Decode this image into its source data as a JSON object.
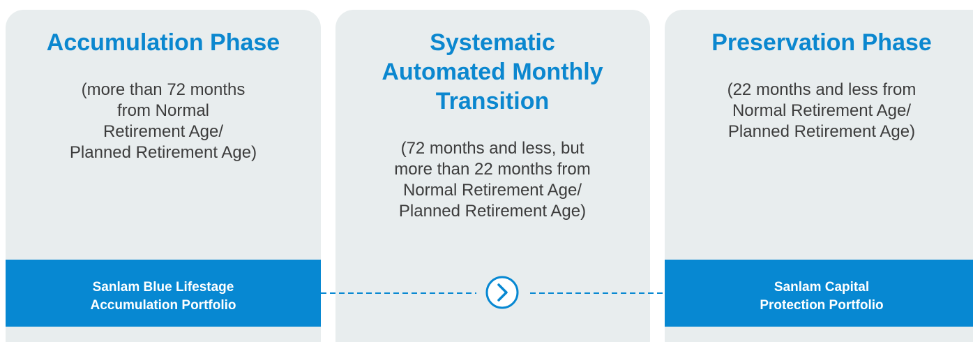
{
  "panels": [
    {
      "title_lines": [
        "Accumulation Phase"
      ],
      "description_lines": [
        "(more than 72 months",
        "from Normal",
        "Retirement Age/",
        "Planned Retirement Age)"
      ],
      "portfolio_lines": [
        "Sanlam Blue Lifestage",
        "Accumulation Portfolio"
      ]
    },
    {
      "title_lines": [
        "Systematic",
        "Automated Monthly",
        "Transition"
      ],
      "description_lines": [
        "(72 months and less, but",
        "more than 22 months from",
        "Normal Retirement Age/",
        "Planned Retirement Age)"
      ]
    },
    {
      "title_lines": [
        "Preservation Phase"
      ],
      "description_lines": [
        "(22 months and less from",
        "Normal Retirement Age/",
        "Planned Retirement Age)"
      ],
      "portfolio_lines": [
        "Sanlam Capital",
        "Protection Portfolio"
      ]
    }
  ]
}
